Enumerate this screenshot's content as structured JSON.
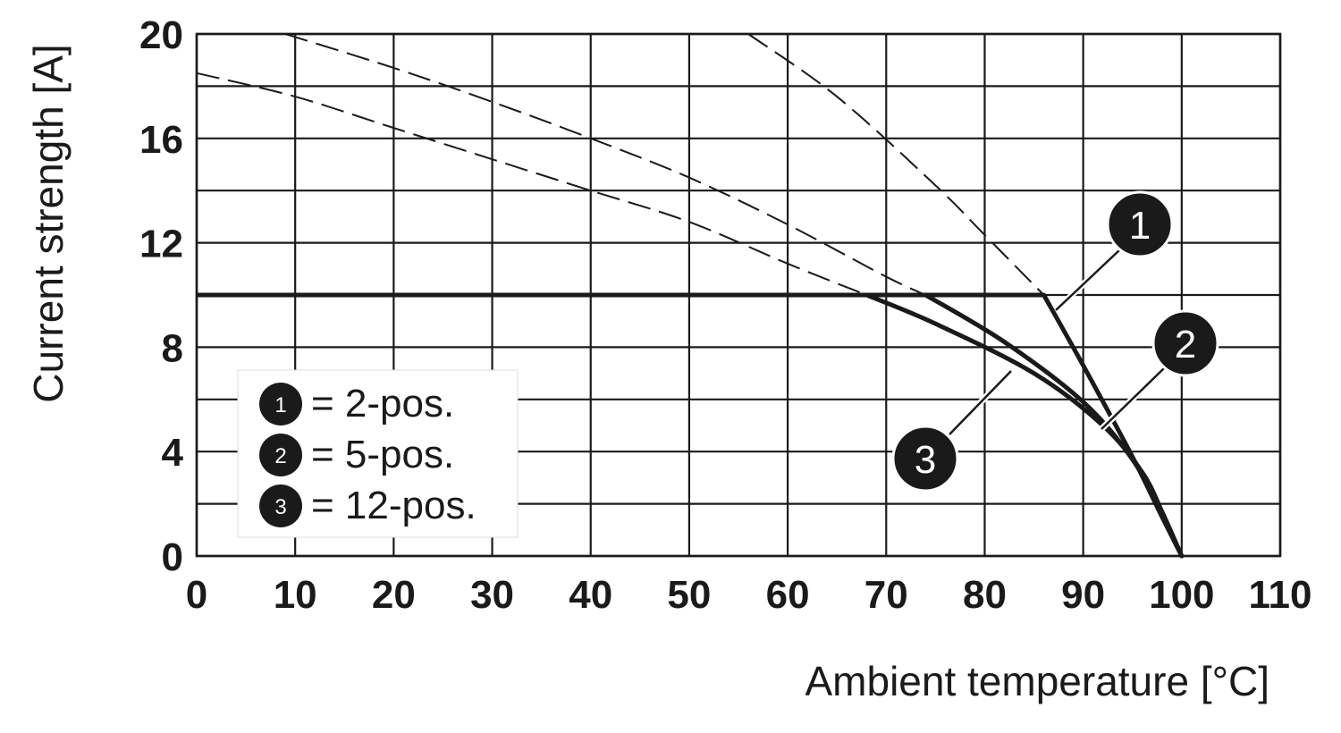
{
  "chart_data": {
    "type": "line",
    "title": "",
    "xlabel": "Ambient temperature [°C]",
    "ylabel": "Current strength [A]",
    "xlim": [
      0,
      110
    ],
    "ylim": [
      0,
      20
    ],
    "x_ticks": [
      0,
      10,
      20,
      30,
      40,
      50,
      60,
      70,
      80,
      90,
      100,
      110
    ],
    "y_ticks": [
      0,
      4,
      8,
      12,
      16,
      20
    ],
    "y_minor_grid": [
      2,
      6,
      10,
      14,
      18
    ],
    "grid": true,
    "legend": {
      "placement": "lower-left",
      "items": [
        {
          "badge": "1",
          "text": "= 2-pos."
        },
        {
          "badge": "2",
          "text": "= 5-pos."
        },
        {
          "badge": "3",
          "text": "= 12-pos."
        }
      ]
    },
    "rated_current_limit": {
      "y": 10,
      "x_start": 0
    },
    "series": [
      {
        "id": "1",
        "solid": [
          [
            86,
            10
          ],
          [
            90,
            7.3
          ],
          [
            95,
            3.8
          ],
          [
            98,
            1.5
          ],
          [
            100,
            0
          ]
        ],
        "dashed": [
          [
            56,
            20
          ],
          [
            65,
            17.6
          ],
          [
            75,
            14.2
          ],
          [
            80,
            12.3
          ],
          [
            86,
            10
          ]
        ]
      },
      {
        "id": "2",
        "solid": [
          [
            74,
            10
          ],
          [
            82,
            8.2
          ],
          [
            90,
            5.9
          ],
          [
            95,
            3.7
          ],
          [
            98,
            1.6
          ],
          [
            100,
            0
          ]
        ],
        "dashed": [
          [
            9,
            20
          ],
          [
            20,
            18.7
          ],
          [
            30,
            17.4
          ],
          [
            40,
            16
          ],
          [
            50,
            14.5
          ],
          [
            60,
            12.7
          ],
          [
            70,
            10.7
          ],
          [
            74,
            10
          ]
        ]
      },
      {
        "id": "3",
        "solid": [
          [
            68,
            10
          ],
          [
            75,
            8.9
          ],
          [
            85,
            7
          ],
          [
            92,
            5
          ],
          [
            96,
            3.2
          ],
          [
            98,
            1.7
          ],
          [
            100,
            0
          ]
        ],
        "dashed": [
          [
            0,
            18.5
          ],
          [
            10,
            17.6
          ],
          [
            20,
            16.4
          ],
          [
            30,
            15.2
          ],
          [
            40,
            14
          ],
          [
            50,
            12.8
          ],
          [
            60,
            11.2
          ],
          [
            68,
            10
          ]
        ]
      }
    ],
    "callouts": [
      {
        "label": "1"
      },
      {
        "label": "2"
      },
      {
        "label": "3"
      }
    ]
  },
  "colors": {
    "ink": "#1a1a1a",
    "grid": "#1a1a1a",
    "background": "#ffffff"
  }
}
